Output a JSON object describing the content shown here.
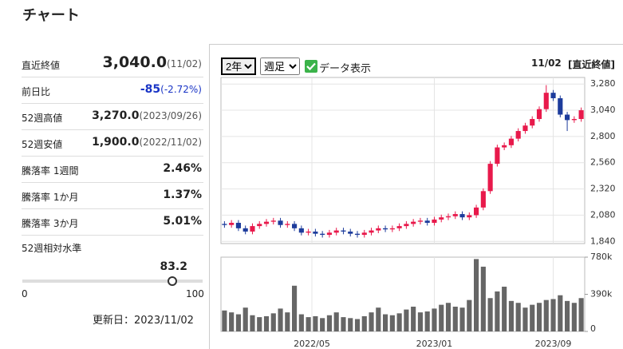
{
  "header": {
    "title": "チャート"
  },
  "summary": [
    {
      "label": "直近終値",
      "value": "3,040.0",
      "note": "(11/02)"
    },
    {
      "label": "前日比",
      "value": "-85",
      "note": "(-2.72%)"
    },
    {
      "label": "52週高値",
      "value": "3,270.0",
      "note": "(2023/09/26)"
    },
    {
      "label": "52週安値",
      "value": "1,900.0",
      "note": "(2022/11/02)"
    },
    {
      "label": "騰落率 1週間",
      "value": "2.46%"
    },
    {
      "label": "騰落率 1か月",
      "value": "1.37%"
    },
    {
      "label": "騰落率 3か月",
      "value": "5.01%"
    }
  ],
  "relative_level": {
    "label": "52週相対水準",
    "value": 83.2,
    "min": 0,
    "max": 100
  },
  "updated": "更新日：2023/11/02",
  "controls": {
    "period": "2年",
    "interval": "週足",
    "show_data": "データ表示",
    "date": "11/02",
    "price_type": "[直近終値]"
  },
  "chart_data": {
    "type": "candlestick",
    "x": [
      1,
      3,
      5,
      7,
      9,
      11,
      13,
      15,
      17,
      19,
      21,
      23,
      25,
      27,
      29,
      31,
      33,
      35,
      37,
      39,
      41,
      43,
      45,
      47,
      49,
      51,
      53,
      55,
      57,
      59,
      61,
      63,
      65,
      67,
      69,
      71,
      73,
      75,
      77,
      79,
      81,
      83,
      85,
      87,
      89,
      91,
      93,
      95,
      97,
      99,
      101,
      103
    ],
    "open": [
      2000,
      1990,
      2010,
      1960,
      1930,
      1980,
      2000,
      2020,
      2030,
      1990,
      2000,
      1960,
      1920,
      1930,
      1910,
      1900,
      1920,
      1940,
      1930,
      1910,
      1900,
      1920,
      1940,
      1960,
      1950,
      1960,
      1980,
      2000,
      2020,
      2030,
      2010,
      2040,
      2060,
      2070,
      2090,
      2060,
      2080,
      2150,
      2300,
      2550,
      2700,
      2720,
      2780,
      2850,
      2900,
      2960,
      3050,
      3200,
      3150,
      3000,
      2950,
      2960
    ],
    "high": [
      2025,
      2035,
      2035,
      1985,
      2005,
      2025,
      2045,
      2055,
      2055,
      2025,
      2025,
      1985,
      1955,
      1955,
      1935,
      1945,
      1965,
      1965,
      1955,
      1935,
      1945,
      1965,
      1985,
      1985,
      1985,
      2005,
      2025,
      2045,
      2055,
      2055,
      2065,
      2085,
      2095,
      2115,
      2115,
      2105,
      2175,
      2325,
      2575,
      2725,
      2745,
      2805,
      2875,
      2925,
      2985,
      3075,
      3270,
      3225,
      3175,
      3025,
      2985,
      3065
    ],
    "low": [
      1965,
      1965,
      1935,
      1905,
      1905,
      1955,
      1975,
      1995,
      1965,
      1965,
      1935,
      1895,
      1895,
      1885,
      1875,
      1875,
      1895,
      1905,
      1885,
      1875,
      1875,
      1895,
      1915,
      1925,
      1925,
      1935,
      1955,
      1975,
      1995,
      1985,
      1985,
      2015,
      2035,
      2045,
      2035,
      2035,
      2055,
      2125,
      2275,
      2525,
      2675,
      2695,
      2755,
      2825,
      2875,
      2935,
      3025,
      3125,
      2975,
      2850,
      2925,
      2935
    ],
    "close": [
      1990,
      2010,
      1960,
      1930,
      1980,
      2000,
      2020,
      2030,
      1990,
      2000,
      1960,
      1920,
      1930,
      1910,
      1900,
      1920,
      1940,
      1930,
      1910,
      1900,
      1920,
      1940,
      1960,
      1950,
      1960,
      1980,
      2000,
      2020,
      2030,
      2010,
      2040,
      2060,
      2070,
      2090,
      2060,
      2080,
      2150,
      2300,
      2550,
      2700,
      2720,
      2780,
      2850,
      2900,
      2960,
      3050,
      3200,
      3150,
      3000,
      2950,
      2960,
      3040
    ],
    "volume": [
      220000,
      200000,
      180000,
      250000,
      170000,
      150000,
      160000,
      190000,
      240000,
      200000,
      480000,
      180000,
      150000,
      160000,
      140000,
      170000,
      200000,
      150000,
      140000,
      130000,
      160000,
      200000,
      250000,
      180000,
      170000,
      190000,
      230000,
      260000,
      200000,
      210000,
      240000,
      280000,
      300000,
      260000,
      250000,
      330000,
      760000,
      680000,
      350000,
      420000,
      470000,
      320000,
      300000,
      250000,
      280000,
      300000,
      330000,
      340000,
      380000,
      320000,
      300000,
      350000
    ],
    "up_color": "#e8194b",
    "down_color": "#1d3c9c",
    "volume_color": "#666666",
    "xlim": [
      0,
      104
    ],
    "xticks": [
      {
        "value": 26,
        "label": "2022/05"
      },
      {
        "value": 61,
        "label": "2023/01"
      },
      {
        "value": 95,
        "label": "2023/09"
      }
    ],
    "ylim": [
      1820,
      3340
    ],
    "yticks": [
      {
        "value": 1840,
        "label": "1,840"
      },
      {
        "value": 2080,
        "label": "2,080"
      },
      {
        "value": 2320,
        "label": "2,320"
      },
      {
        "value": 2560,
        "label": "2,560"
      },
      {
        "value": 2800,
        "label": "2,800"
      },
      {
        "value": 3040,
        "label": "3,040"
      },
      {
        "value": 3280,
        "label": "3,280"
      }
    ],
    "y2lim": [
      0,
      780000
    ],
    "y2ticks": [
      0,
      {
        "value": 390000,
        "label": "390k"
      },
      {
        "value": 780000,
        "label": "780k"
      }
    ],
    "grid": true
  }
}
